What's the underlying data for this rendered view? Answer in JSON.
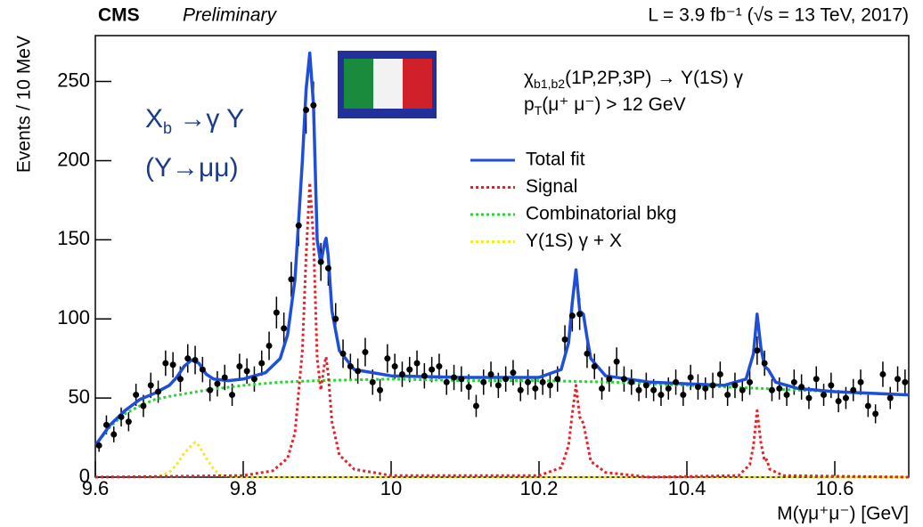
{
  "chart_data": {
    "type": "line",
    "experiment": "CMS",
    "status": "Preliminary",
    "luminosity": "L = 3.9 fb⁻¹ (√s = 13 TeV, 2017)",
    "xlabel": "M(γμ⁺μ⁻) [GeV]",
    "ylabel": "Events / 10 MeV",
    "annotations": [
      {
        "main": "χ",
        "sub": "b1,b2",
        "rest": "(1P,2P,3P) → Υ(1S) γ"
      },
      {
        "main": "p",
        "sub": "T",
        "rest": "(μ⁺ μ⁻) > 12 GeV"
      },
      {
        "main": "X",
        "sub": "b",
        "rest": " →γ Υ"
      },
      {
        "main": "(Υ→μμ)"
      }
    ],
    "xlim": [
      9.6,
      10.7
    ],
    "xticks": [
      9.6,
      9.8,
      10,
      10.2,
      10.4,
      10.6
    ],
    "ylim": [
      0,
      279
    ],
    "yticks": [
      0,
      50,
      100,
      150,
      200,
      250
    ],
    "grid": false,
    "series": [
      {
        "name": "Total fit",
        "color": "#1f4fd8",
        "style": "solid",
        "x": [
          9.6,
          9.62,
          9.64,
          9.66,
          9.68,
          9.7,
          9.71,
          9.72,
          9.73,
          9.74,
          9.75,
          9.76,
          9.78,
          9.8,
          9.83,
          9.85,
          9.86,
          9.87,
          9.88,
          9.885,
          9.89,
          9.895,
          9.9,
          9.905,
          9.91,
          9.912,
          9.915,
          9.92,
          9.93,
          9.95,
          10.0,
          10.1,
          10.2,
          10.23,
          10.24,
          10.245,
          10.25,
          10.255,
          10.26,
          10.265,
          10.27,
          10.29,
          10.35,
          10.45,
          10.48,
          10.49,
          10.495,
          10.5,
          10.505,
          10.51,
          10.52,
          10.55,
          10.6,
          10.7
        ],
        "values": [
          20,
          33,
          42,
          49,
          53,
          58,
          63,
          70,
          74,
          72,
          65,
          62,
          61,
          62,
          66,
          75,
          90,
          125,
          200,
          245,
          268,
          235,
          150,
          135,
          148,
          151,
          140,
          105,
          80,
          68,
          64,
          63,
          63,
          68,
          85,
          110,
          131,
          105,
          103,
          88,
          75,
          64,
          60,
          58,
          62,
          78,
          103,
          82,
          70,
          68,
          60,
          56,
          54,
          52
        ]
      },
      {
        "name": "Signal",
        "color": "#e8202a",
        "style": "dotted",
        "x": [
          9.6,
          9.8,
          9.84,
          9.86,
          9.87,
          9.88,
          9.885,
          9.89,
          9.895,
          9.9,
          9.905,
          9.91,
          9.912,
          9.915,
          9.92,
          9.93,
          9.95,
          10.0,
          10.2,
          10.23,
          10.24,
          10.245,
          10.25,
          10.255,
          10.26,
          10.265,
          10.27,
          10.29,
          10.35,
          10.47,
          10.485,
          10.49,
          10.495,
          10.5,
          10.505,
          10.508,
          10.512,
          10.53,
          10.7
        ],
        "values": [
          0,
          1,
          4,
          12,
          28,
          80,
          140,
          186,
          150,
          75,
          55,
          72,
          76,
          65,
          35,
          14,
          5,
          1,
          1,
          6,
          20,
          40,
          58,
          38,
          34,
          22,
          10,
          3,
          0,
          1,
          8,
          20,
          42,
          22,
          10,
          11,
          5,
          1,
          0
        ]
      },
      {
        "name": "Combinatorial bkg",
        "color": "#2fd03a",
        "style": "dotted",
        "x": [
          9.6,
          9.62,
          9.64,
          9.66,
          9.68,
          9.7,
          9.75,
          9.8,
          9.85,
          9.9,
          10.0,
          10.1,
          10.2,
          10.3,
          10.4,
          10.5,
          10.6,
          10.7
        ],
        "values": [
          20,
          32,
          40,
          45,
          49,
          51,
          55,
          58,
          60,
          61,
          62,
          61,
          61,
          60,
          58,
          56,
          54,
          52
        ]
      },
      {
        "name": "Υ(1S) γ + X",
        "color": "#f5e63a",
        "style": "dotted",
        "x": [
          9.6,
          9.68,
          9.7,
          9.71,
          9.72,
          9.73,
          9.735,
          9.74,
          9.75,
          9.76,
          9.77,
          9.8,
          10.7
        ],
        "values": [
          0,
          0,
          3,
          8,
          15,
          20,
          22,
          20,
          12,
          5,
          1,
          0,
          0
        ]
      }
    ],
    "data_points": {
      "color": "#000000",
      "x": [
        9.605,
        9.615,
        9.625,
        9.635,
        9.645,
        9.655,
        9.665,
        9.675,
        9.685,
        9.695,
        9.705,
        9.715,
        9.725,
        9.735,
        9.745,
        9.755,
        9.765,
        9.775,
        9.785,
        9.795,
        9.805,
        9.815,
        9.825,
        9.835,
        9.845,
        9.855,
        9.865,
        9.875,
        9.885,
        9.895,
        9.905,
        9.915,
        9.925,
        9.935,
        9.945,
        9.955,
        9.965,
        9.975,
        9.985,
        9.995,
        10.005,
        10.015,
        10.025,
        10.035,
        10.045,
        10.055,
        10.065,
        10.075,
        10.085,
        10.095,
        10.105,
        10.115,
        10.125,
        10.135,
        10.145,
        10.155,
        10.165,
        10.175,
        10.185,
        10.195,
        10.205,
        10.215,
        10.225,
        10.235,
        10.245,
        10.255,
        10.265,
        10.275,
        10.285,
        10.295,
        10.305,
        10.315,
        10.325,
        10.335,
        10.345,
        10.355,
        10.365,
        10.375,
        10.385,
        10.395,
        10.405,
        10.415,
        10.425,
        10.435,
        10.445,
        10.455,
        10.465,
        10.475,
        10.485,
        10.495,
        10.505,
        10.515,
        10.525,
        10.535,
        10.545,
        10.555,
        10.565,
        10.575,
        10.585,
        10.595,
        10.605,
        10.615,
        10.625,
        10.635,
        10.645,
        10.655,
        10.665,
        10.675,
        10.685,
        10.695
      ],
      "values": [
        20,
        33,
        27,
        38,
        35,
        52,
        45,
        58,
        54,
        72,
        71,
        62,
        75,
        74,
        68,
        55,
        59,
        63,
        52,
        70,
        67,
        62,
        72,
        83,
        104,
        94,
        125,
        159,
        232,
        235,
        136,
        132,
        100,
        78,
        70,
        67,
        79,
        60,
        55,
        75,
        70,
        65,
        68,
        72,
        64,
        68,
        70,
        60,
        63,
        62,
        57,
        45,
        60,
        65,
        58,
        62,
        66,
        55,
        60,
        56,
        60,
        58,
        62,
        87,
        102,
        103,
        78,
        70,
        56,
        62,
        73,
        62,
        60,
        55,
        58,
        55,
        52,
        56,
        60,
        52,
        63,
        57,
        56,
        58,
        65,
        52,
        58,
        55,
        60,
        80,
        72,
        55,
        56,
        52,
        60,
        57,
        50,
        62,
        52,
        58,
        48,
        50,
        55,
        60,
        45,
        40,
        65,
        50,
        62,
        60
      ],
      "errors": [
        4,
        6,
        5,
        6,
        6,
        7,
        7,
        8,
        7,
        8,
        8,
        8,
        9,
        9,
        8,
        7,
        8,
        8,
        7,
        8,
        8,
        8,
        8,
        9,
        10,
        10,
        11,
        13,
        15,
        15,
        12,
        11,
        10,
        9,
        8,
        8,
        9,
        8,
        7,
        9,
        8,
        8,
        8,
        8,
        8,
        8,
        8,
        8,
        8,
        8,
        8,
        7,
        8,
        8,
        8,
        8,
        8,
        7,
        8,
        7,
        8,
        8,
        8,
        9,
        10,
        10,
        9,
        8,
        7,
        8,
        9,
        8,
        8,
        7,
        8,
        7,
        7,
        7,
        8,
        7,
        8,
        8,
        7,
        8,
        8,
        7,
        8,
        7,
        8,
        9,
        8,
        7,
        7,
        7,
        8,
        8,
        7,
        8,
        7,
        8,
        7,
        7,
        7,
        8,
        7,
        6,
        8,
        7,
        8,
        8
      ]
    }
  }
}
